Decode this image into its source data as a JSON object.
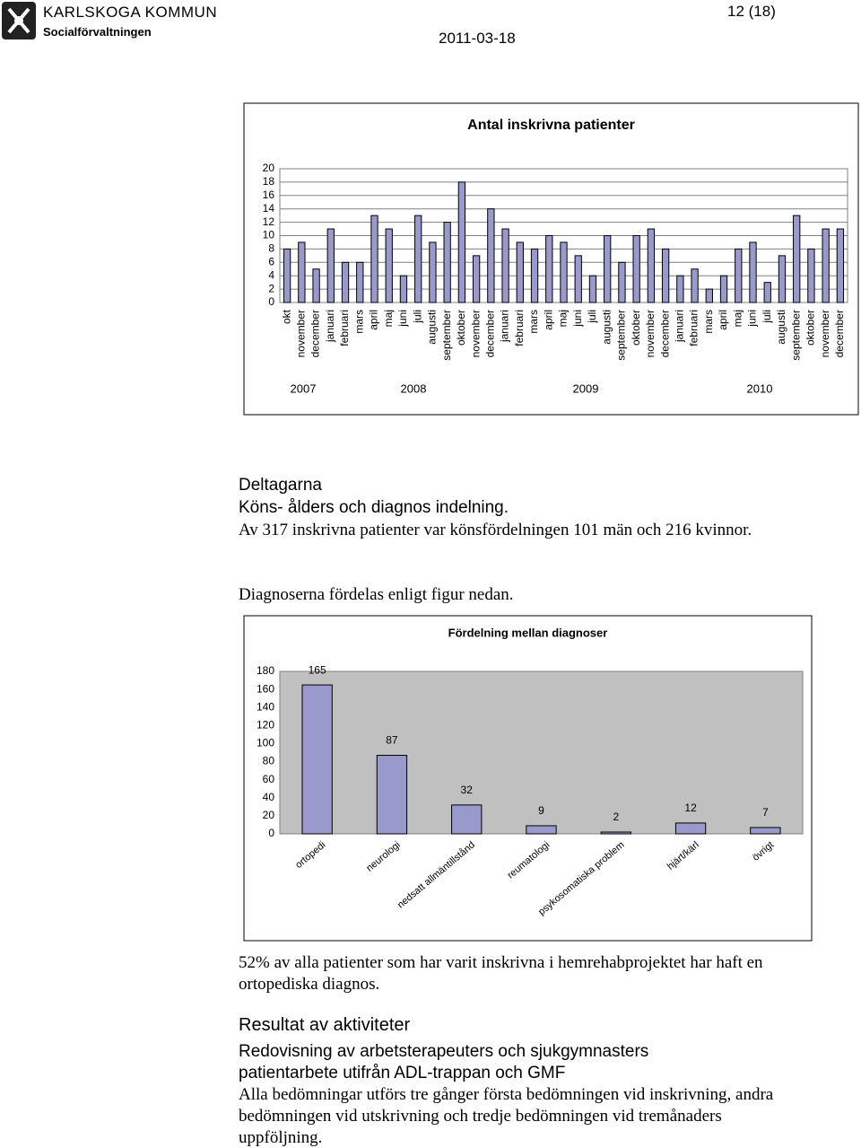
{
  "header": {
    "org": "KARLSKOGA KOMMUN",
    "dept": "Socialförvaltningen",
    "page": "12 (18)",
    "date": "2011-03-18"
  },
  "chart_data": [
    {
      "type": "bar",
      "title": "Antal inskrivna patienter",
      "categories": [
        "okt",
        "november",
        "december",
        "januari",
        "februari",
        "mars",
        "april",
        "maj",
        "juni",
        "juli",
        "augusti",
        "september",
        "oktober",
        "november",
        "december",
        "januari",
        "februari",
        "mars",
        "april",
        "maj",
        "juni",
        "juli",
        "augusti",
        "september",
        "oktober",
        "november",
        "december",
        "januari",
        "februari",
        "mars",
        "april",
        "maj",
        "juni",
        "juli",
        "augusti",
        "september",
        "oktober",
        "november",
        "december"
      ],
      "values": [
        8,
        9,
        5,
        11,
        6,
        6,
        13,
        11,
        4,
        13,
        9,
        12,
        18,
        7,
        14,
        11,
        9,
        8,
        10,
        9,
        7,
        4,
        10,
        6,
        10,
        11,
        8,
        4,
        5,
        2,
        4,
        8,
        9,
        3,
        7,
        13,
        8,
        11,
        11
      ],
      "year_labels": [
        "2007",
        "2008",
        "2009",
        "2010"
      ],
      "color": "#9999cc",
      "ylim": [
        0,
        20
      ],
      "yticks": [
        0,
        2,
        4,
        6,
        8,
        10,
        12,
        14,
        16,
        18,
        20
      ],
      "grid": true
    },
    {
      "type": "bar",
      "title": "Fördelning mellan diagnoser",
      "categories": [
        "ortopedi",
        "neurologi",
        "nedsatt allmäntillstånd",
        "reumatologi",
        "psykosomatiska problem",
        "hjärt/kärl",
        "övrigt"
      ],
      "values": [
        165,
        87,
        32,
        9,
        2,
        12,
        7
      ],
      "color": "#9999cc",
      "ylim": [
        0,
        180
      ],
      "yticks": [
        0,
        20,
        40,
        60,
        80,
        100,
        120,
        140,
        160,
        180
      ],
      "grid": false
    }
  ],
  "text": {
    "heading1": "Deltagarna",
    "subheading1": "Köns- ålders och diagnos indelning.",
    "para1": "Av 317 inskrivna patienter var könsfördelningen 101 män och 216 kvinnor.",
    "para2": "Diagnoserna fördelas enligt figur nedan.",
    "para3": "52% av alla patienter som har varit inskrivna i hemrehabprojektet har haft en ortopediska diagnos.",
    "heading2": "Resultat av aktiviteter",
    "subheading2": "Redovisning av arbetsterapeuters och sjukgymnasters patientarbete utifrån ADL-trappan och GMF",
    "para4": "Alla bedömningar utförs tre gånger första bedömningen vid inskrivning, andra bedömningen vid utskrivning och tredje bedömningen vid tremånaders uppföljning."
  }
}
